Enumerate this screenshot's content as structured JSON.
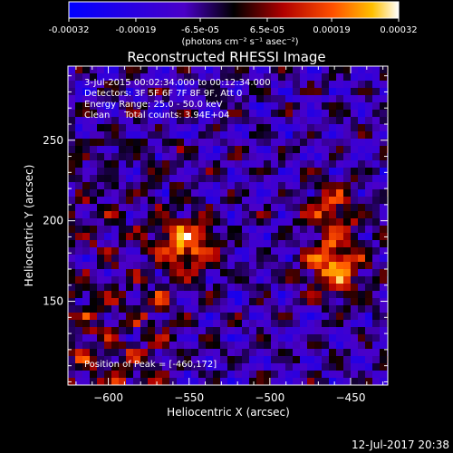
{
  "colorbar": {
    "tick_labels": [
      "-0.00032",
      "-0.00019",
      "-6.5e-05",
      "6.5e-05",
      "0.00019",
      "0.00032"
    ],
    "unit_label": "(photons cm⁻² s⁻¹ asec⁻²)",
    "range": [
      -0.00032,
      0.00032
    ]
  },
  "info": {
    "time_range": "3-Jul-2015 00:02:34.000 to 00:12:34.000",
    "detectors": "Detectors: 3F 5F 6F 7F 8F 9F, Att 0",
    "energy": "Energy Range: 25.0 - 50.0 keV",
    "clean": "Clean     Total counts: 3.94E+04",
    "peak": "Position of Peak = [-460,172]"
  },
  "footer": {
    "timestamp": "12-Jul-2017 20:38"
  },
  "chart_data": {
    "type": "heatmap",
    "title": "Reconstructed RHESSI Image",
    "xlabel": "Heliocentric X (arcsec)",
    "ylabel": "Heliocentric Y (arcsec)",
    "xlim": [
      -625,
      -427
    ],
    "ylim": [
      98,
      296
    ],
    "x_ticks": [
      -600,
      -550,
      -500,
      -450
    ],
    "y_ticks": [
      150,
      200,
      250
    ],
    "x_tick_labels": [
      "−600",
      "−550",
      "−500",
      "−450"
    ],
    "y_tick_labels": [
      "150",
      "200",
      "250"
    ],
    "peak_position": [
      -460,
      172
    ],
    "sources": [
      {
        "x": -550,
        "y": 185
      },
      {
        "x": -460,
        "y": 172
      },
      {
        "x": -462,
        "y": 206
      }
    ]
  }
}
